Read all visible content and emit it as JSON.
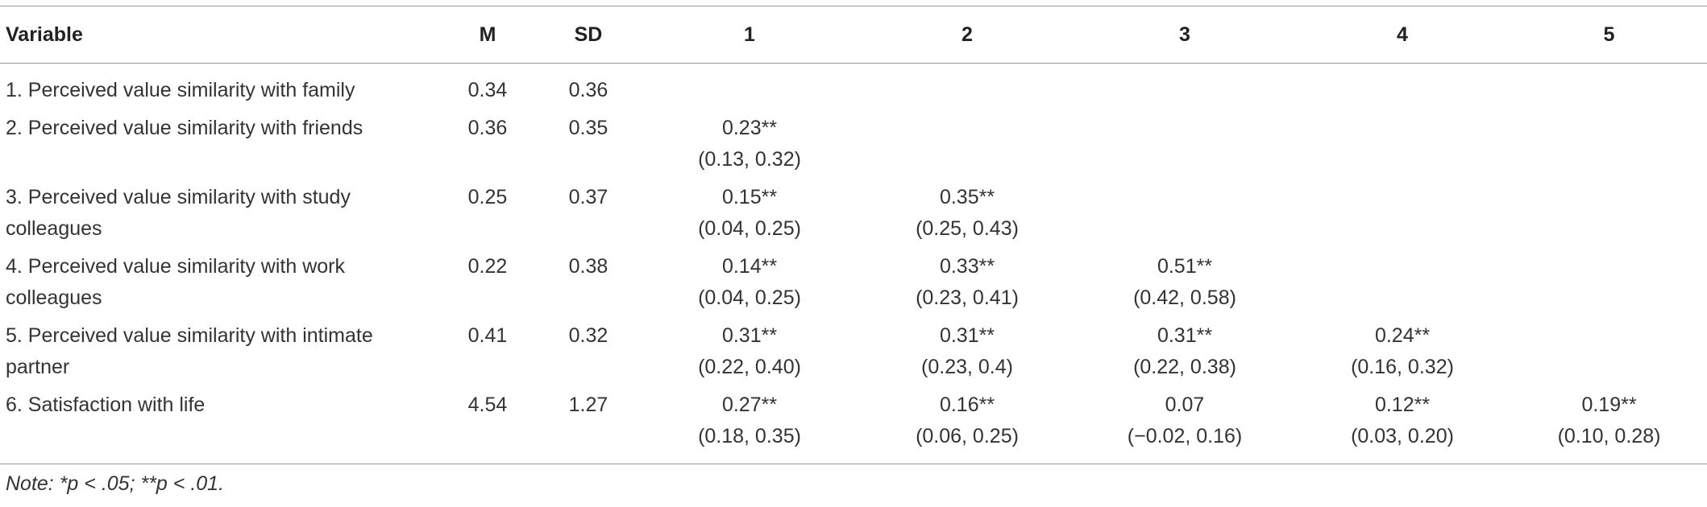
{
  "table": {
    "columns": [
      "Variable",
      "M",
      "SD",
      "1",
      "2",
      "3",
      "4",
      "5"
    ],
    "rows": [
      {
        "variable": "1. Perceived value similarity with family",
        "m": "0.34",
        "sd": "0.36",
        "correlations": []
      },
      {
        "variable": "2. Perceived value similarity with friends",
        "m": "0.36",
        "sd": "0.35",
        "correlations": [
          {
            "r": "0.23**",
            "ci": "(0.13, 0.32)"
          }
        ]
      },
      {
        "variable": "3. Perceived value similarity with study colleagues",
        "m": "0.25",
        "sd": "0.37",
        "correlations": [
          {
            "r": "0.15**",
            "ci": "(0.04, 0.25)"
          },
          {
            "r": "0.35**",
            "ci": "(0.25, 0.43)"
          }
        ]
      },
      {
        "variable": "4. Perceived value similarity with work colleagues",
        "m": "0.22",
        "sd": "0.38",
        "correlations": [
          {
            "r": "0.14**",
            "ci": "(0.04, 0.25)"
          },
          {
            "r": "0.33**",
            "ci": "(0.23, 0.41)"
          },
          {
            "r": "0.51**",
            "ci": "(0.42, 0.58)"
          }
        ]
      },
      {
        "variable": "5. Perceived value similarity with intimate partner",
        "m": "0.41",
        "sd": "0.32",
        "correlations": [
          {
            "r": "0.31**",
            "ci": "(0.22, 0.40)"
          },
          {
            "r": "0.31**",
            "ci": "(0.23, 0.4)"
          },
          {
            "r": "0.31**",
            "ci": "(0.22, 0.38)"
          },
          {
            "r": "0.24**",
            "ci": "(0.16, 0.32)"
          }
        ]
      },
      {
        "variable": "6. Satisfaction with life",
        "m": "4.54",
        "sd": "1.27",
        "correlations": [
          {
            "r": "0.27**",
            "ci": "(0.18, 0.35)"
          },
          {
            "r": "0.16**",
            "ci": "(0.06, 0.25)"
          },
          {
            "r": "0.07",
            "ci": "(−0.02, 0.16)"
          },
          {
            "r": "0.12**",
            "ci": "(0.03, 0.20)"
          },
          {
            "r": "0.19**",
            "ci": "(0.10, 0.28)"
          }
        ]
      }
    ],
    "note": "Note: *p < .05; **p < .01."
  }
}
